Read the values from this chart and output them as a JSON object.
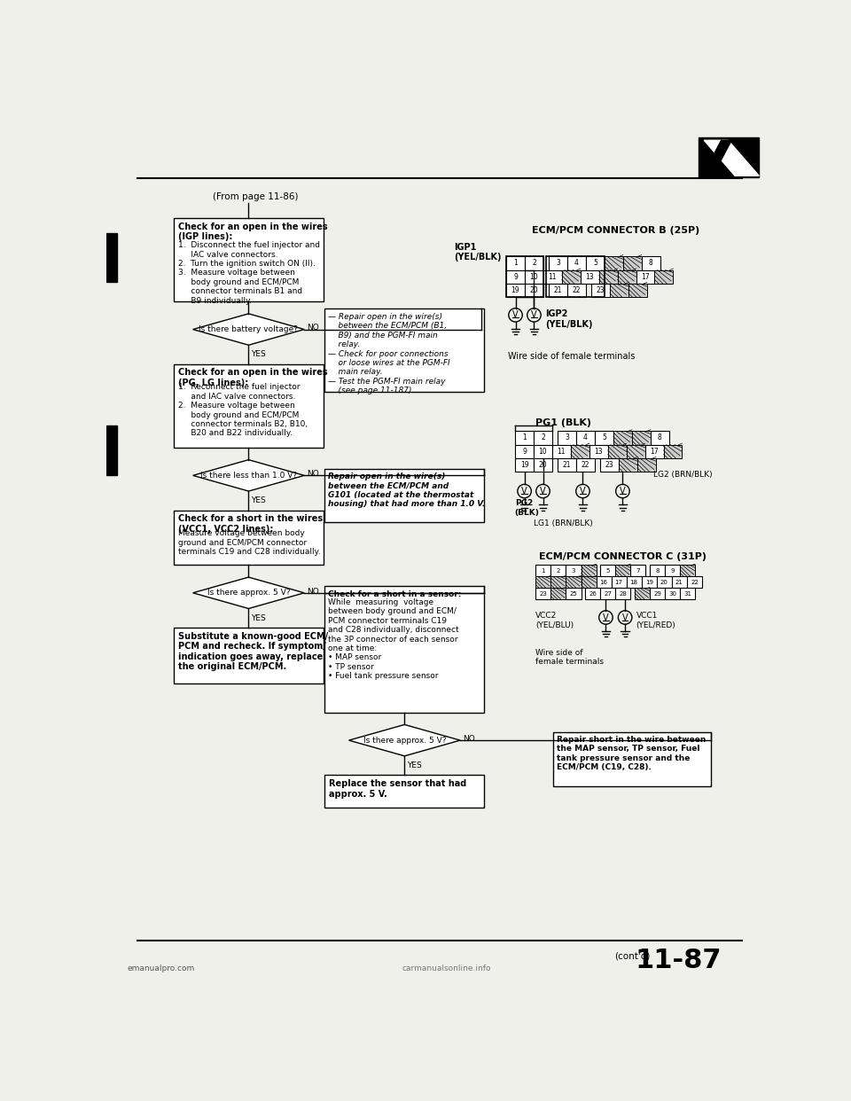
{
  "bg_color": "#f0f0eb",
  "page_ref": "(From page 11-86)",
  "page_num": "11-87",
  "cont": "(cont'd)",
  "website": "emanualpro.com",
  "website2": "carmanualsonline.info",
  "ecm_b_title": "ECM/PCM CONNECTOR B (25P)",
  "ecm_c_title": "ECM/PCM CONNECTOR C (31P)",
  "wire_side": "Wire side of female terminals",
  "wire_side2": "Wire side of\nfemale terminals",
  "box1_bold": "Check for an open in the wires\n(IGP lines):",
  "box1_body": "1.  Disconnect the fuel injector and\n     IAC valve connectors.\n2.  Turn the ignition switch ON (II).\n3.  Measure voltage between\n     body ground and ECM/PCM\n     connector terminals B1 and\n     B9 individually.",
  "diamond1": "Is there battery voltage?",
  "box2_bold": "Check for an open in the wires\n(PG, LG lines):",
  "box2_body": "1.  Reconnect the fuel injector\n     and IAC valve connectors.\n2.  Measure voltage between\n     body ground and ECM/PCM\n     connector terminals B2, B10,\n     B20 and B22 individually.",
  "diamond2": "Is there less than 1.0 V?",
  "box3_bold": "Check for a short in the wires\n(VCC1, VCC2 lines):",
  "box3_body": "Measure voltage between body\nground and ECM/PCM connector\nterminals C19 and C28 individually.",
  "diamond3": "Is there approx. 5 V?",
  "box4_bold": "Substitute a known-good ECM/\nPCM and recheck. If symptom/\nindication goes away, replace\nthe original ECM/PCM.",
  "nobox1": "— Repair open in the wire(s)\n    between the ECM/PCM (B1,\n    B9) and the PGM-FI main\n    relay.\n— Check for poor connections\n    or loose wires at the PGM-FI\n    main relay.\n— Test the PGM-FI main relay\n    (see page 11-187).",
  "nobox2_bold": "Repair open in the wire(s)\nbetween the ECM/PCM and\nG101 (located at the thermostat\nhousing) that had more than 1.0 V.",
  "nobox3_title": "Check for a short in a sensor:",
  "nobox3_body": "While  measuring  voltage\nbetween body ground and ECM/\nPCM connector terminals C19\nand C28 individually, disconnect\nthe 3P connector of each sensor\none at time:\n• MAP sensor\n• TP sensor\n• Fuel tank pressure sensor",
  "diamond4": "Is there approx. 5 V?",
  "box5_bold": "Replace the sensor that had\napprox. 5 V.",
  "nobox4_bold": "Repair short in the wire between\nthe MAP sensor, TP sensor, Fuel\ntank pressure sensor and the\nECM/PCM (C19, C28)."
}
